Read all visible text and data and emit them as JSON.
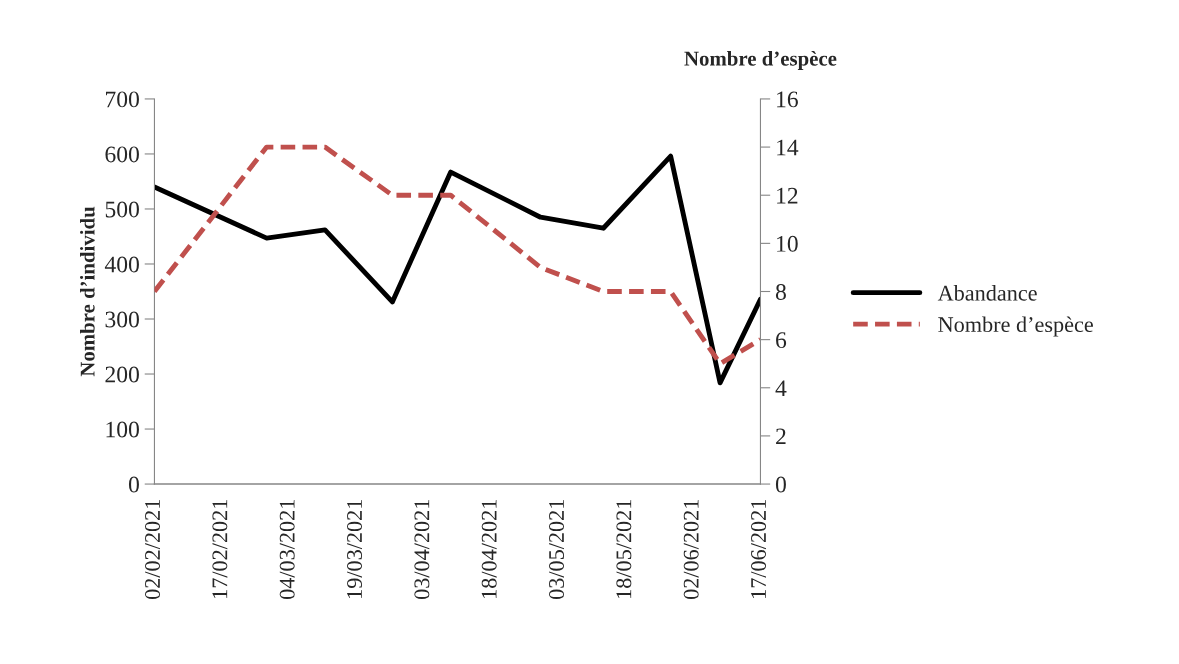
{
  "chart_data": {
    "type": "line",
    "ylabel": "Nombre d’individu",
    "y2label": "Nombre d’espèce",
    "x": [
      "2021-02-02",
      "2021-02-27",
      "2021-03-12",
      "2021-03-27",
      "2021-04-09",
      "2021-04-29",
      "2021-05-13",
      "2021-05-28",
      "2021-06-08",
      "2021-06-17"
    ],
    "series": [
      {
        "name": "Abandance",
        "color": "#000000",
        "line_style": "solid",
        "values": [
          540,
          447,
          462,
          331,
          567,
          485,
          465,
          596,
          184,
          336
        ]
      },
      {
        "name": "Nombre d’espèce",
        "color": "#c0504d",
        "line_style": "dashed",
        "axis": "y2",
        "values": [
          8,
          14,
          14,
          12,
          12,
          9,
          8,
          8,
          5,
          6
        ]
      }
    ],
    "xlim": [
      "2021-02-02",
      "2021-06-17"
    ],
    "xticks": [
      {
        "value": "2021-02-02",
        "label": "02/02/2021"
      },
      {
        "value": "2021-02-17",
        "label": "17/02/2021"
      },
      {
        "value": "2021-03-04",
        "label": "04/03/2021"
      },
      {
        "value": "2021-03-19",
        "label": "19/03/2021"
      },
      {
        "value": "2021-04-03",
        "label": "03/04/2021"
      },
      {
        "value": "2021-04-18",
        "label": "18/04/2021"
      },
      {
        "value": "2021-05-03",
        "label": "03/05/2021"
      },
      {
        "value": "2021-05-18",
        "label": "18/05/2021"
      },
      {
        "value": "2021-06-02",
        "label": "02/06/2021"
      },
      {
        "value": "2021-06-17",
        "label": "17/06/2021"
      }
    ],
    "ylim": [
      0,
      700
    ],
    "yticks": [
      0,
      100,
      200,
      300,
      400,
      500,
      600,
      700
    ],
    "y2lim": [
      0,
      16
    ],
    "y2ticks": [
      0,
      2,
      4,
      6,
      8,
      10,
      12,
      14,
      16
    ],
    "grid": false,
    "legend": "right",
    "marker": "none"
  }
}
